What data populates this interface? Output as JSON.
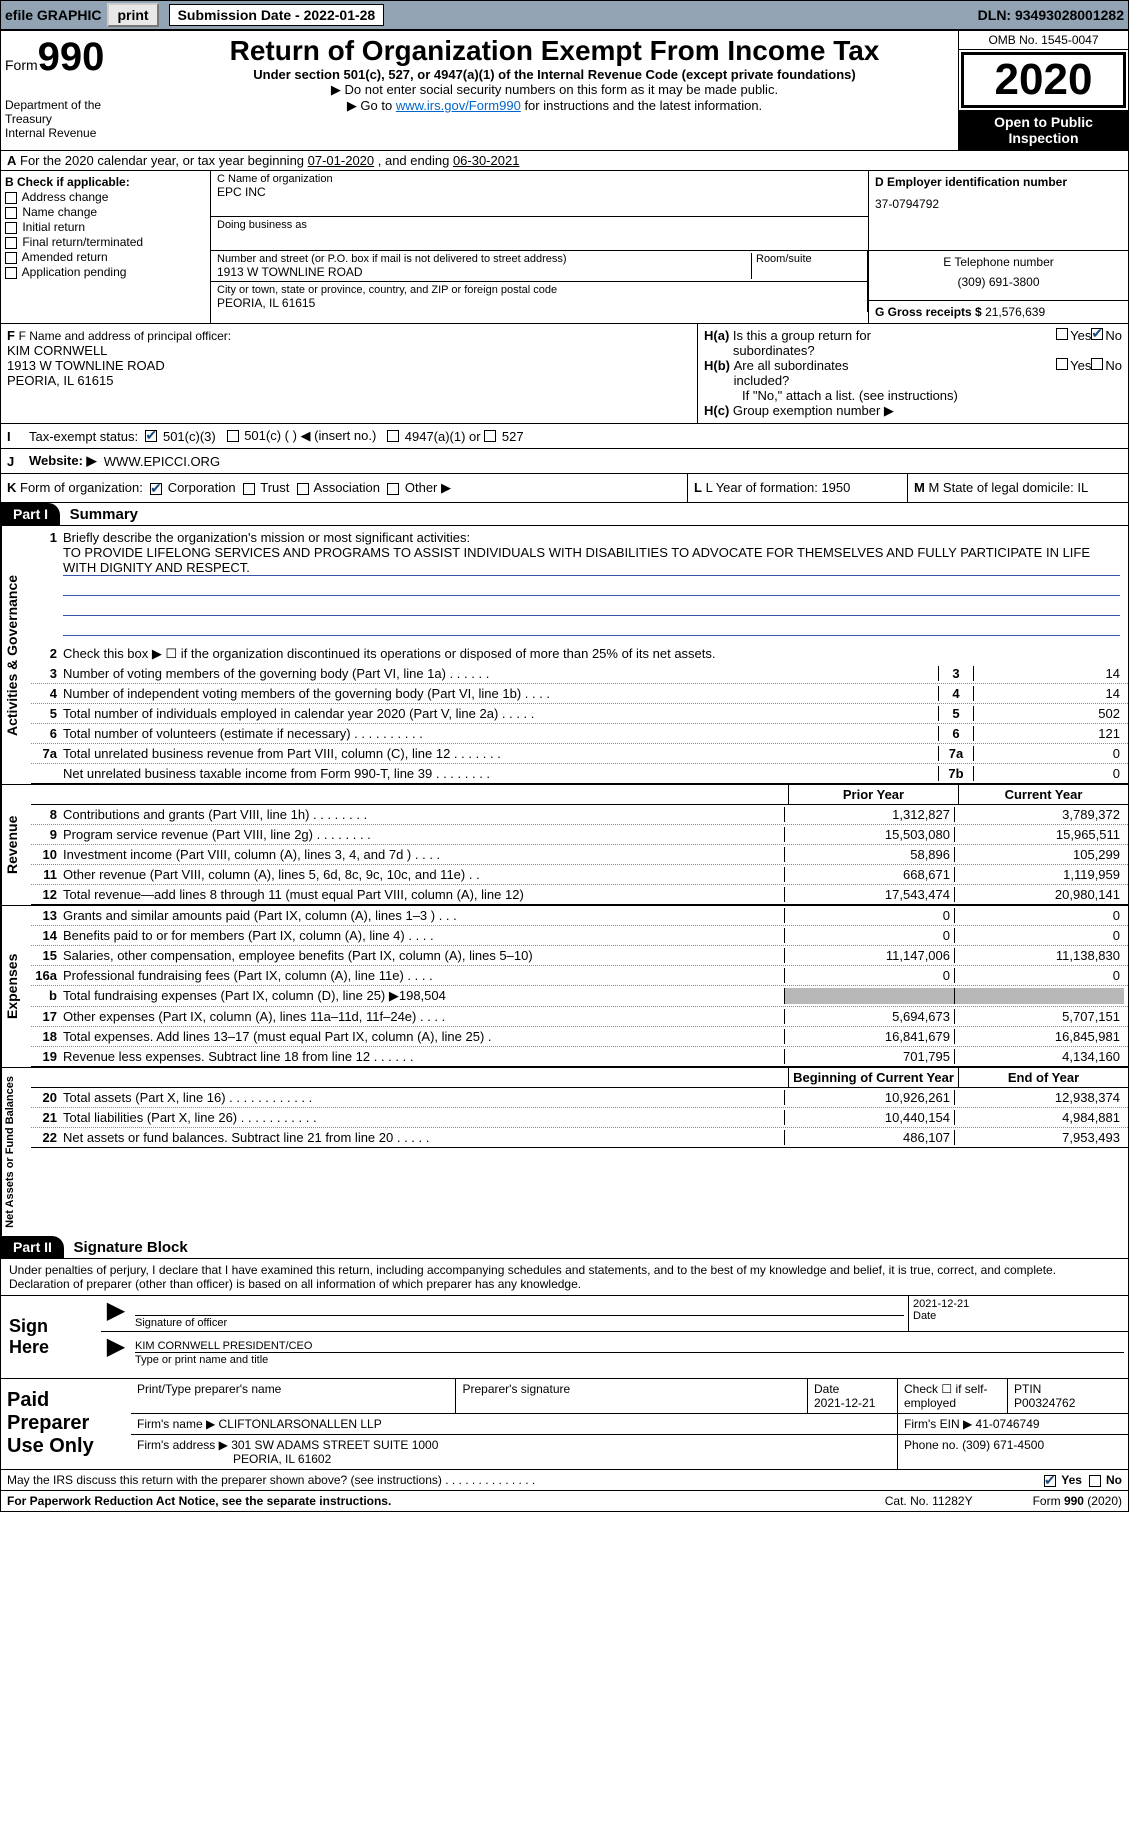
{
  "topbar": {
    "efile_label": "efile GRAPHIC",
    "print_btn": "print",
    "submission_label": "Submission Date - ",
    "submission_date": "2022-01-28",
    "dln_label": "DLN: ",
    "dln": "93493028001282"
  },
  "header": {
    "form_word": "Form",
    "form_num": "990",
    "dept1": "Department of the Treasury",
    "dept2": "Internal Revenue",
    "title": "Return of Organization Exempt From Income Tax",
    "subtitle": "Under section 501(c), 527, or 4947(a)(1) of the Internal Revenue Code (except private foundations)",
    "inst1": "▶ Do not enter social security numbers on this form as it may be made public.",
    "inst2_pre": "▶ Go to ",
    "inst2_link": "www.irs.gov/Form990",
    "inst2_post": " for instructions and the latest information.",
    "omb": "OMB No. 1545-0047",
    "year": "2020",
    "open1": "Open to Public",
    "open2": "Inspection"
  },
  "a_row": {
    "text_pre": "For the 2020 calendar year, or tax year beginning ",
    "begin": "07-01-2020",
    "mid": "   , and ending ",
    "end": "06-30-2021"
  },
  "box_b": {
    "label": "B Check if applicable:",
    "opts": [
      "Address change",
      "Name change",
      "Initial return",
      "Final return/terminated",
      "Amended return",
      "Application pending"
    ]
  },
  "box_c": {
    "label": "C Name of organization",
    "name": "EPC INC",
    "dba_label": "Doing business as",
    "street_label": "Number and street (or P.O. box if mail is not delivered to street address)",
    "street": "1913 W TOWNLINE ROAD",
    "room_label": "Room/suite",
    "city_label": "City or town, state or province, country, and ZIP or foreign postal code",
    "city": "PEORIA, IL  61615"
  },
  "box_d": {
    "label": "D Employer identification number",
    "ein": "37-0794792"
  },
  "box_e": {
    "label": "E Telephone number",
    "phone": "(309) 691-3800"
  },
  "box_g": {
    "label": "G Gross receipts $ ",
    "amount": "21,576,639"
  },
  "box_f": {
    "label": "F Name and address of principal officer:",
    "name": "KIM CORNWELL",
    "street": "1913 W TOWNLINE ROAD",
    "city": "PEORIA, IL  61615"
  },
  "box_h": {
    "ha_label": "H(a)  Is this a group return for subordinates?",
    "hb_label": "H(b)  Are all subordinates included?",
    "hb_note": "If \"No,\" attach a list. (see instructions)",
    "hc_label": "H(c)  Group exemption number ▶",
    "yes": "Yes",
    "no": "No"
  },
  "row_i": {
    "label": "Tax-exempt status:",
    "o1": "501(c)(3)",
    "o2": "501(c) (  ) ◀ (insert no.)",
    "o3": "4947(a)(1) or",
    "o4": "527"
  },
  "row_j": {
    "label": "Website: ▶",
    "url": "WWW.EPICCI.ORG"
  },
  "row_k": {
    "label": "K Form of organization:",
    "o1": "Corporation",
    "o2": "Trust",
    "o3": "Association",
    "o4": "Other ▶"
  },
  "row_l": {
    "label": "L Year of formation: ",
    "val": "1950"
  },
  "row_m": {
    "label": "M State of legal domicile: ",
    "val": "IL"
  },
  "part1": {
    "hdr": "Part I",
    "title": "Summary",
    "l1_label": "Briefly describe the organization's mission or most significant activities:",
    "l1_text": "TO PROVIDE LIFELONG SERVICES AND PROGRAMS TO ASSIST INDIVIDUALS WITH DISABILITIES TO ADVOCATE FOR THEMSELVES AND FULLY PARTICIPATE IN LIFE WITH DIGNITY AND RESPECT.",
    "l2": "Check this box ▶ ☐  if the organization discontinued its operations or disposed of more than 25% of its net assets.",
    "side_gov": "Activities & Governance",
    "side_rev": "Revenue",
    "side_exp": "Expenses",
    "side_net": "Net Assets or Fund Balances",
    "prior_hdr": "Prior Year",
    "curr_hdr": "Current Year",
    "beg_hdr": "Beginning of Current Year",
    "end_hdr": "End of Year",
    "gov_lines": [
      {
        "n": "3",
        "d": "Number of voting members of the governing body (Part VI, line 1a)   .    .    .    .    .    .",
        "c": "3",
        "v": "14"
      },
      {
        "n": "4",
        "d": "Number of independent voting members of the governing body (Part VI, line 1b)    .    .    .    .",
        "c": "4",
        "v": "14"
      },
      {
        "n": "5",
        "d": "Total number of individuals employed in calendar year 2020 (Part V, line 2a)   .    .    .    .    .",
        "c": "5",
        "v": "502"
      },
      {
        "n": "6",
        "d": "Total number of volunteers (estimate if necessary)   .    .    .    .    .    .    .    .    .    .",
        "c": "6",
        "v": "121"
      },
      {
        "n": "7a",
        "d": "Total unrelated business revenue from Part VIII, column (C), line 12   .    .    .    .    .    .    .",
        "c": "7a",
        "v": "0"
      },
      {
        "n": "",
        "d": "Net unrelated business taxable income from Form 990-T, line 39   .    .    .    .    .    .    .    .",
        "c": "7b",
        "v": "0"
      }
    ],
    "rev_lines": [
      {
        "n": "8",
        "d": "Contributions and grants (Part VIII, line 1h)    .    .    .    .    .    .    .    .",
        "p": "1,312,827",
        "c": "3,789,372"
      },
      {
        "n": "9",
        "d": "Program service revenue (Part VIII, line 2g)    .    .    .    .    .    .    .    .",
        "p": "15,503,080",
        "c": "15,965,511"
      },
      {
        "n": "10",
        "d": "Investment income (Part VIII, column (A), lines 3, 4, and 7d )    .    .    .    .",
        "p": "58,896",
        "c": "105,299"
      },
      {
        "n": "11",
        "d": "Other revenue (Part VIII, column (A), lines 5, 6d, 8c, 9c, 10c, and 11e)    .    .",
        "p": "668,671",
        "c": "1,119,959"
      },
      {
        "n": "12",
        "d": "Total revenue—add lines 8 through 11 (must equal Part VIII, column (A), line 12)",
        "p": "17,543,474",
        "c": "20,980,141"
      }
    ],
    "exp_lines": [
      {
        "n": "13",
        "d": "Grants and similar amounts paid (Part IX, column (A), lines 1–3 )   .    .    .",
        "p": "0",
        "c": "0"
      },
      {
        "n": "14",
        "d": "Benefits paid to or for members (Part IX, column (A), line 4)    .    .    .    .",
        "p": "0",
        "c": "0"
      },
      {
        "n": "15",
        "d": "Salaries, other compensation, employee benefits (Part IX, column (A), lines 5–10)",
        "p": "11,147,006",
        "c": "11,138,830"
      },
      {
        "n": "16a",
        "d": "Professional fundraising fees (Part IX, column (A), line 11e)    .    .    .    .",
        "p": "0",
        "c": "0"
      },
      {
        "n": "b",
        "d": "Total fundraising expenses (Part IX, column (D), line 25) ▶198,504",
        "p": "",
        "c": "",
        "shaded": true
      },
      {
        "n": "17",
        "d": "Other expenses (Part IX, column (A), lines 11a–11d, 11f–24e)    .    .    .    .",
        "p": "5,694,673",
        "c": "5,707,151"
      },
      {
        "n": "18",
        "d": "Total expenses. Add lines 13–17 (must equal Part IX, column (A), line 25)    .",
        "p": "16,841,679",
        "c": "16,845,981"
      },
      {
        "n": "19",
        "d": "Revenue less expenses. Subtract line 18 from line 12    .    .    .    .    .    .",
        "p": "701,795",
        "c": "4,134,160"
      }
    ],
    "net_lines": [
      {
        "n": "20",
        "d": "Total assets (Part X, line 16)   .    .    .    .    .    .    .    .    .    .    .    .",
        "p": "10,926,261",
        "c": "12,938,374"
      },
      {
        "n": "21",
        "d": "Total liabilities (Part X, line 26)    .    .    .    .    .    .    .    .    .    .    .",
        "p": "10,440,154",
        "c": "4,984,881"
      },
      {
        "n": "22",
        "d": "Net assets or fund balances. Subtract line 21 from line 20   .    .    .    .    .",
        "p": "486,107",
        "c": "7,953,493"
      }
    ]
  },
  "part2": {
    "hdr": "Part II",
    "title": "Signature Block",
    "decl": "Under penalties of perjury, I declare that I have examined this return, including accompanying schedules and statements, and to the best of my knowledge and belief, it is true, correct, and complete. Declaration of preparer (other than officer) is based on all information of which preparer has any knowledge.",
    "sign_here": "Sign Here",
    "sig_officer_lbl": "Signature of officer",
    "sig_date": "2021-12-21",
    "date_lbl": "Date",
    "officer_name": "KIM CORNWELL  PRESIDENT/CEO",
    "officer_lbl": "Type or print name and title",
    "paid_hdr": "Paid Preparer Use Only",
    "prep_name_lbl": "Print/Type preparer's name",
    "prep_sig_lbl": "Preparer's signature",
    "prep_date_lbl": "Date",
    "prep_date": "2021-12-21",
    "self_emp_lbl": "Check ☐ if self-employed",
    "ptin_lbl": "PTIN",
    "ptin": "P00324762",
    "firm_name_lbl": "Firm's name    ▶ ",
    "firm_name": "CLIFTONLARSONALLEN LLP",
    "firm_ein_lbl": "Firm's EIN ▶ ",
    "firm_ein": "41-0746749",
    "firm_addr_lbl": "Firm's address ▶ ",
    "firm_addr1": "301 SW ADAMS STREET SUITE 1000",
    "firm_addr2": "PEORIA, IL  61602",
    "firm_phone_lbl": "Phone no. ",
    "firm_phone": "(309) 671-4500",
    "may_irs": "May the IRS discuss this return with the preparer shown above? (see instructions)    .    .    .    .    .    .    .    .    .    .    .    .    .    .",
    "pra": "For Paperwork Reduction Act Notice, see the separate instructions.",
    "cat": "Cat. No. 11282Y",
    "form_foot": "Form 990 (2020)"
  },
  "colors": {
    "topbar_bg": "#92a4b4",
    "link": "#0066cc",
    "rule": "#3355aa"
  }
}
